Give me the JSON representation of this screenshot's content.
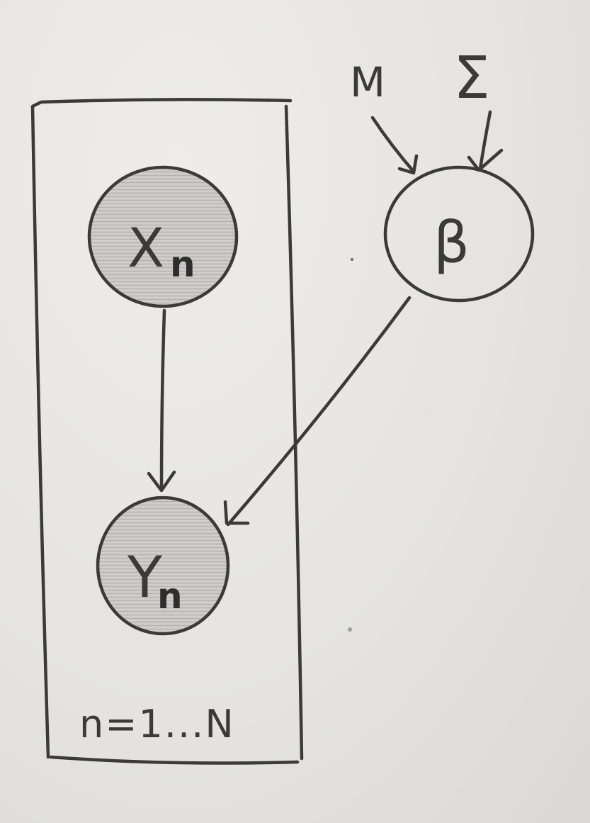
{
  "diagram": {
    "type": "plate-notation",
    "nodes": {
      "x_n": {
        "main": "X",
        "sub": "n",
        "observed": true
      },
      "y_n": {
        "main": "Y",
        "sub": "n",
        "observed": true
      },
      "beta": {
        "main": "β",
        "observed": false
      }
    },
    "hyperparameters": {
      "mu": "M",
      "sigma": "Σ"
    },
    "plate": {
      "label": "n=1...N"
    },
    "edges": [
      {
        "from": "mu",
        "to": "beta"
      },
      {
        "from": "sigma",
        "to": "beta"
      },
      {
        "from": "x_n",
        "to": "y_n"
      },
      {
        "from": "beta",
        "to": "y_n"
      }
    ],
    "colors": {
      "ink": "#3a3a3a",
      "shade": "#c8c7c4",
      "paper": "#e6e5e3"
    }
  }
}
